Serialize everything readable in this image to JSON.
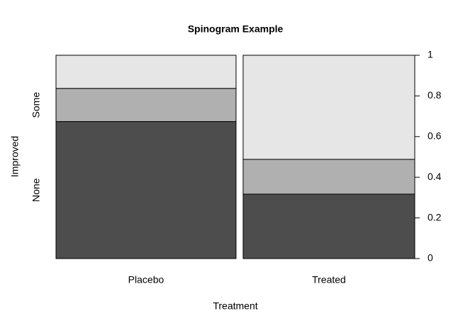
{
  "chart_data": {
    "type": "spinogram",
    "title": "Spinogram Example",
    "x_label": "Treatment",
    "y_label": "Improved",
    "categories": [
      "Placebo",
      "Treated"
    ],
    "widths": [
      0.512,
      0.488
    ],
    "series": [
      {
        "name": "None",
        "color": "#4d4d4d",
        "values": [
          0.674,
          0.317
        ]
      },
      {
        "name": "Some",
        "color": "#b0b0b0",
        "values": [
          0.163,
          0.171
        ]
      },
      {
        "name": null,
        "color": "#e6e6e6",
        "values": [
          0.163,
          0.512
        ]
      }
    ],
    "ylim": [
      0,
      1
    ],
    "yticks": [
      0,
      0.2,
      0.4,
      0.6,
      0.8,
      1
    ]
  }
}
